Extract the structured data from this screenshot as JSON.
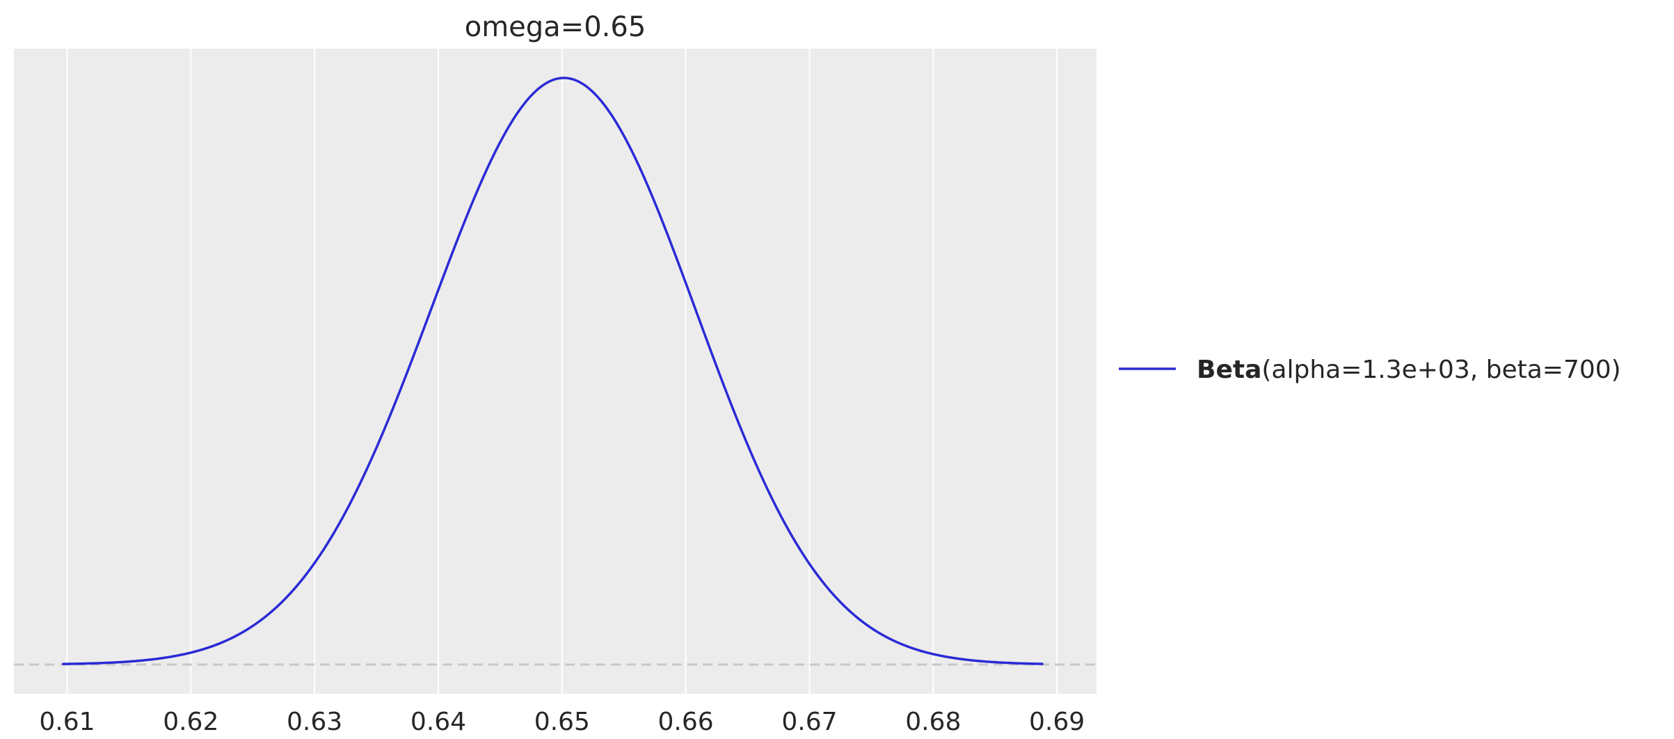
{
  "chart_data": {
    "type": "line",
    "title": "omega=0.65",
    "xlabel": "",
    "ylabel": "",
    "xlim": [
      0.6057,
      0.6932
    ],
    "x_ticks": [
      "0.61",
      "0.62",
      "0.63",
      "0.64",
      "0.65",
      "0.66",
      "0.67",
      "0.68",
      "0.69"
    ],
    "grid": "vertical",
    "baseline": 0,
    "legend_position": "right",
    "colors": {
      "line": "#2a2ad6",
      "background": "#ececec",
      "grid": "#ffffff",
      "baseline": "#c8c8c8"
    },
    "series": [
      {
        "name_bold": "Beta",
        "name_rest": "(alpha=1.3e+03, beta=700)",
        "distribution": {
          "family": "Beta",
          "alpha": 1300,
          "beta": 700
        },
        "x_range": [
          0.6096,
          0.6889
        ]
      }
    ]
  }
}
